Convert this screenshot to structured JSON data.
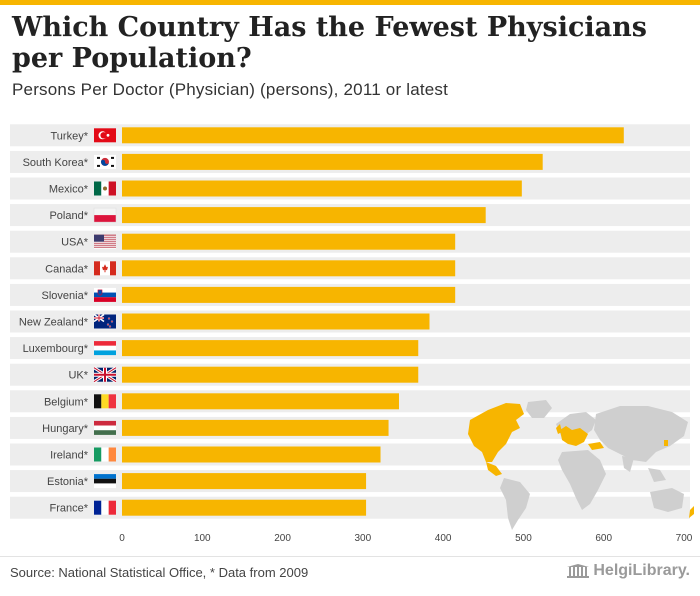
{
  "title": "Which Country Has the Fewest Physicians per Population?",
  "subtitle": "Persons Per Doctor (Physician) (persons), 2011 or latest",
  "source": "Source: National Statistical Office, * Data from 2009",
  "logo_text": "HelgiLibrary.",
  "colors": {
    "bar": "#f7b500",
    "band": "#ededed",
    "accent": "#f7b500"
  },
  "chart_data": {
    "type": "bar",
    "orientation": "horizontal",
    "categories": [
      "Turkey*",
      "South Korea*",
      "Mexico*",
      "Poland*",
      "USA*",
      "Canada*",
      "Slovenia*",
      "New Zealand*",
      "Luxembourg*",
      "UK*",
      "Belgium*",
      "Hungary*",
      "Ireland*",
      "Estonia*",
      "France*"
    ],
    "flags": [
      "flag-turkey-icon",
      "flag-south-korea-icon",
      "flag-mexico-icon",
      "flag-poland-icon",
      "flag-usa-icon",
      "flag-canada-icon",
      "flag-slovenia-icon",
      "flag-new-zealand-icon",
      "flag-luxembourg-icon",
      "flag-uk-icon",
      "flag-belgium-icon",
      "flag-hungary-icon",
      "flag-ireland-icon",
      "flag-estonia-icon",
      "flag-france-icon"
    ],
    "values": [
      625,
      524,
      498,
      453,
      415,
      415,
      415,
      383,
      369,
      369,
      345,
      332,
      322,
      304,
      304
    ],
    "xlim": [
      0,
      700
    ],
    "xticks": [
      0,
      100,
      200,
      300,
      400,
      500,
      600,
      700
    ],
    "xlabel": "",
    "ylabel": "",
    "title": "Which Country Has the Fewest Physicians per Population?",
    "legend": "none"
  }
}
